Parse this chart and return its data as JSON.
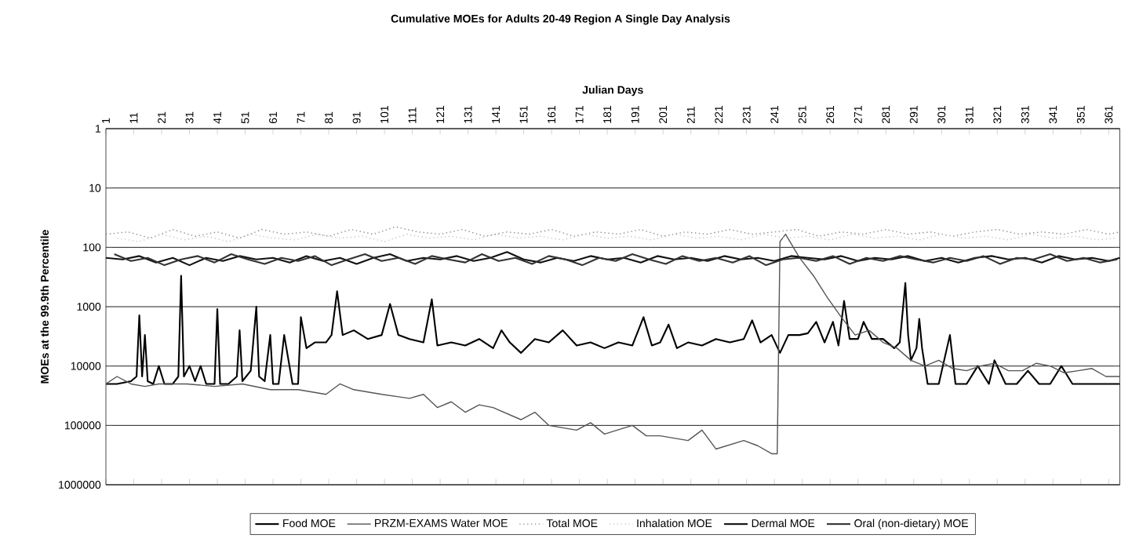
{
  "chart_data": {
    "type": "line",
    "title": "Cumulative MOEs for Adults 20-49 Region A Single Day Analysis",
    "xlabel": "Julian Days",
    "ylabel": "MOEs at the 99.9th Percentile",
    "xlim": [
      1,
      365
    ],
    "xticks": [
      1,
      11,
      21,
      31,
      41,
      51,
      61,
      71,
      81,
      91,
      101,
      111,
      121,
      131,
      141,
      151,
      161,
      171,
      181,
      191,
      201,
      211,
      221,
      231,
      241,
      251,
      261,
      271,
      281,
      291,
      301,
      311,
      321,
      331,
      341,
      351,
      361
    ],
    "ylim": [
      1000000,
      1
    ],
    "yticks": [
      1,
      10,
      100,
      1000,
      10000,
      100000,
      1000000
    ],
    "log": "y",
    "grid": "y",
    "legend": "bottom",
    "series": [
      {
        "name": "Food MOE",
        "color": "#000000",
        "line_style": "solid",
        "x": [
          1,
          5,
          10,
          12,
          13,
          14,
          15,
          16,
          18,
          20,
          22,
          25,
          27,
          28,
          29,
          31,
          33,
          35,
          37,
          40,
          41,
          42,
          45,
          48,
          49,
          50,
          53,
          55,
          56,
          58,
          60,
          61,
          63,
          65,
          68,
          70,
          71,
          73,
          76,
          80,
          82,
          84,
          86,
          90,
          95,
          100,
          103,
          106,
          110,
          115,
          118,
          120,
          125,
          130,
          135,
          140,
          143,
          146,
          150,
          155,
          160,
          165,
          170,
          175,
          180,
          185,
          190,
          194,
          197,
          200,
          203,
          206,
          210,
          215,
          220,
          225,
          230,
          233,
          236,
          240,
          243,
          246,
          250,
          253,
          256,
          259,
          262,
          264,
          266,
          268,
          271,
          273,
          276,
          280,
          284,
          286,
          288,
          289,
          290,
          292,
          293,
          294,
          296,
          300,
          304,
          306,
          310,
          314,
          318,
          320,
          324,
          328,
          332,
          336,
          340,
          344,
          348,
          350,
          354,
          358,
          362,
          365
        ],
        "values": [
          20000,
          20000,
          18000,
          15000,
          1400,
          15000,
          3000,
          18000,
          20000,
          10000,
          20000,
          20000,
          15000,
          300,
          15000,
          10000,
          18000,
          10000,
          20000,
          20000,
          1100,
          20000,
          20000,
          15000,
          2500,
          18000,
          12000,
          1000,
          15000,
          18000,
          3000,
          20000,
          20000,
          3000,
          20000,
          20000,
          1500,
          5000,
          4000,
          4000,
          3000,
          550,
          3000,
          2500,
          3500,
          3000,
          900,
          3000,
          3500,
          4000,
          750,
          4500,
          4000,
          4500,
          3500,
          5000,
          2500,
          4000,
          6000,
          3500,
          4000,
          2500,
          4500,
          4000,
          5000,
          4000,
          4500,
          1500,
          4500,
          4000,
          2000,
          5000,
          4000,
          4500,
          3500,
          4000,
          3500,
          1700,
          4000,
          3000,
          6000,
          3000,
          3000,
          2800,
          1800,
          4000,
          1800,
          4500,
          800,
          3500,
          3500,
          1800,
          3500,
          3500,
          5000,
          4000,
          400,
          3000,
          8000,
          5000,
          1600,
          5000,
          20000,
          20000,
          3000,
          20000,
          20000,
          10000,
          20000,
          8000,
          20000,
          20000,
          12000,
          20000,
          20000,
          10000,
          20000,
          20000,
          20000,
          20000,
          20000,
          20000
        ]
      },
      {
        "name": "PRZM-EXAMS Water MOE",
        "color": "#555555",
        "line_style": "solid",
        "x": [
          1,
          5,
          10,
          15,
          20,
          30,
          40,
          50,
          60,
          70,
          80,
          85,
          90,
          100,
          110,
          115,
          120,
          125,
          130,
          135,
          140,
          150,
          155,
          160,
          170,
          175,
          180,
          190,
          195,
          200,
          210,
          215,
          220,
          230,
          235,
          240,
          242,
          243,
          245,
          250,
          255,
          260,
          265,
          270,
          275,
          280,
          285,
          290,
          295,
          300,
          305,
          310,
          315,
          320,
          325,
          330,
          335,
          340,
          345,
          350,
          355,
          360,
          365
        ],
        "values": [
          20000,
          15000,
          20000,
          22000,
          20000,
          20000,
          22000,
          20000,
          25000,
          25000,
          30000,
          20000,
          25000,
          30000,
          35000,
          30000,
          50000,
          40000,
          60000,
          45000,
          50000,
          80000,
          60000,
          100000,
          120000,
          90000,
          140000,
          100000,
          150000,
          150000,
          180000,
          120000,
          250000,
          180000,
          220000,
          300000,
          300000,
          80,
          60,
          150,
          300,
          700,
          1500,
          3000,
          2500,
          4000,
          5000,
          8000,
          10000,
          8000,
          11000,
          12000,
          10000,
          9000,
          12000,
          12000,
          9000,
          10000,
          13000,
          12000,
          11000,
          15000,
          15000
        ]
      },
      {
        "name": "Total MOE",
        "color": "#8c8c8c",
        "line_style": "dotted",
        "x": [
          1,
          9,
          17,
          25,
          33,
          41,
          49,
          57,
          65,
          73,
          81,
          89,
          97,
          105,
          113,
          121,
          129,
          137,
          145,
          153,
          161,
          169,
          177,
          185,
          193,
          201,
          209,
          217,
          225,
          233,
          241,
          249,
          257,
          265,
          273,
          281,
          289,
          297,
          305,
          313,
          321,
          329,
          337,
          345,
          353,
          361,
          365
        ],
        "values": [
          60,
          55,
          70,
          50,
          65,
          55,
          70,
          50,
          60,
          55,
          65,
          50,
          60,
          45,
          55,
          60,
          50,
          65,
          55,
          60,
          50,
          65,
          55,
          60,
          50,
          65,
          55,
          60,
          50,
          60,
          55,
          50,
          65,
          55,
          60,
          50,
          60,
          55,
          65,
          55,
          50,
          60,
          55,
          60,
          50,
          60,
          55
        ]
      },
      {
        "name": "Inhalation MOE",
        "color": "#c8c8c8",
        "line_style": "dotted",
        "x": [
          5,
          13,
          21,
          29,
          37,
          45,
          53,
          61,
          69,
          77,
          85,
          93,
          101,
          109,
          117,
          125,
          133,
          141,
          149,
          157,
          165,
          173,
          181,
          189,
          197,
          205,
          213,
          221,
          229,
          237,
          245,
          253,
          261,
          269,
          277,
          285,
          293,
          301,
          309,
          317,
          325,
          333,
          341,
          349,
          357,
          363
        ],
        "values": [
          70,
          80,
          60,
          75,
          65,
          80,
          60,
          70,
          75,
          60,
          70,
          65,
          80,
          60,
          70,
          65,
          75,
          60,
          70,
          65,
          75,
          60,
          70,
          65,
          75,
          60,
          70,
          65,
          75,
          60,
          70,
          65,
          75,
          60,
          70,
          65,
          75,
          60,
          70,
          65,
          75,
          60,
          70,
          65,
          75,
          70
        ]
      },
      {
        "name": "Dermal MOE",
        "color": "#111111",
        "line_style": "solid",
        "x": [
          1,
          7,
          13,
          19,
          25,
          31,
          37,
          43,
          49,
          55,
          61,
          67,
          73,
          79,
          85,
          91,
          97,
          103,
          109,
          115,
          121,
          127,
          133,
          139,
          145,
          151,
          157,
          163,
          169,
          175,
          181,
          187,
          193,
          199,
          205,
          211,
          217,
          223,
          229,
          235,
          241,
          247,
          253,
          259,
          265,
          271,
          277,
          283,
          289,
          295,
          301,
          307,
          313,
          319,
          325,
          331,
          337,
          343,
          349,
          355,
          361,
          365
        ],
        "values": [
          150,
          160,
          140,
          180,
          150,
          200,
          150,
          170,
          140,
          160,
          150,
          180,
          140,
          170,
          150,
          190,
          150,
          130,
          170,
          150,
          160,
          140,
          170,
          150,
          120,
          160,
          180,
          150,
          170,
          140,
          160,
          150,
          180,
          140,
          160,
          150,
          170,
          140,
          160,
          150,
          170,
          140,
          150,
          160,
          140,
          170,
          150,
          160,
          140,
          170,
          150,
          180,
          150,
          140,
          160,
          150,
          180,
          140,
          160,
          150,
          170,
          150
        ]
      },
      {
        "name": "Oral (non-dietary) MOE",
        "color": "#333333",
        "line_style": "solid",
        "x": [
          4,
          10,
          16,
          22,
          28,
          34,
          40,
          46,
          52,
          58,
          64,
          70,
          76,
          82,
          88,
          94,
          100,
          106,
          112,
          118,
          124,
          130,
          136,
          142,
          148,
          154,
          160,
          166,
          172,
          178,
          184,
          190,
          196,
          202,
          208,
          214,
          220,
          226,
          232,
          238,
          244,
          250,
          256,
          262,
          268,
          274,
          280,
          286,
          292,
          298,
          304,
          310,
          316,
          322,
          328,
          334,
          340,
          346,
          352,
          358,
          364
        ],
        "values": [
          130,
          170,
          150,
          200,
          160,
          140,
          180,
          130,
          160,
          190,
          150,
          170,
          140,
          200,
          160,
          130,
          170,
          150,
          190,
          140,
          160,
          180,
          130,
          170,
          150,
          190,
          140,
          160,
          200,
          150,
          170,
          130,
          160,
          190,
          140,
          170,
          150,
          180,
          140,
          200,
          160,
          150,
          170,
          140,
          190,
          150,
          170,
          140,
          160,
          180,
          150,
          170,
          140,
          190,
          150,
          160,
          130,
          170,
          150,
          180,
          160
        ]
      }
    ]
  }
}
